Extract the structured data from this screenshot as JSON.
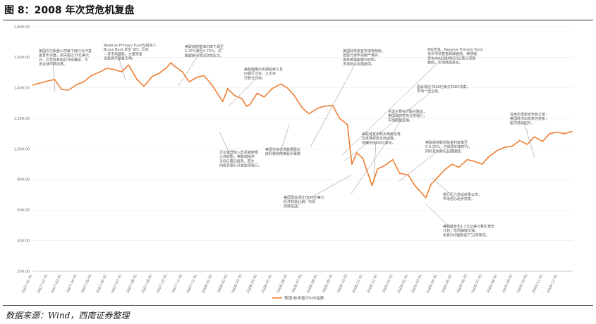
{
  "figure": {
    "title": "图 8：2008 年次贷危机复盘",
    "source": "数据来源：Wind，西南证券整理"
  },
  "colors": {
    "line": "#ed7d31",
    "connector": "#7f7f7f",
    "text": "#555555",
    "grid": "#e6e6e6"
  },
  "chart_data": {
    "type": "line",
    "title": "",
    "xlabel": "",
    "ylabel": "",
    "ylim": [
      200,
      1800
    ],
    "yticks": [
      "200.00",
      "400.00",
      "600.00",
      "800.00",
      "1,000.00",
      "1,200.00",
      "1,400.00",
      "1,600.00",
      "1,800.00"
    ],
    "ytick_values": [
      200,
      400,
      600,
      800,
      1000,
      1200,
      1400,
      1600,
      1800
    ],
    "xticks": [
      "2007-01-01",
      "2007-02-01",
      "2007-03-01",
      "2007-04-01",
      "2007-05-01",
      "2007-06-01",
      "2007-07-01",
      "2007-08-01",
      "2007-09-01",
      "2007-10-01",
      "2007-11-01",
      "2007-12-01",
      "2008-01-01",
      "2008-02-01",
      "2008-03-01",
      "2008-04-01",
      "2008-05-01",
      "2008-06-01",
      "2008-07-01",
      "2008-08-01",
      "2008-09-01",
      "2008-10-01",
      "2008-11-01",
      "2008-12-01",
      "2009-01-01",
      "2009-02-01",
      "2009-03-01",
      "2009-04-01",
      "2009-05-01",
      "2009-06-01",
      "2009-07-01",
      "2009-08-01",
      "2009-09-01",
      "2009-10-01",
      "2009-11-01",
      "2009-12-01"
    ],
    "legend": {
      "position": "bottom",
      "entries": [
        "美国:标准普尔500指数"
      ]
    },
    "series": [
      {
        "name": "美国:标准普尔500指数",
        "x": [
          "2007-01-01",
          "2007-01-15",
          "2007-02-01",
          "2007-02-15",
          "2007-03-01",
          "2007-03-15",
          "2007-04-01",
          "2007-04-15",
          "2007-05-01",
          "2007-05-15",
          "2007-06-01",
          "2007-06-15",
          "2007-07-01",
          "2007-07-15",
          "2007-08-01",
          "2007-08-15",
          "2007-09-01",
          "2007-09-15",
          "2007-10-01",
          "2007-10-09",
          "2007-10-15",
          "2007-11-01",
          "2007-11-15",
          "2007-12-01",
          "2007-12-15",
          "2008-01-01",
          "2008-01-22",
          "2008-02-01",
          "2008-02-15",
          "2008-03-01",
          "2008-03-10",
          "2008-03-17",
          "2008-04-01",
          "2008-04-15",
          "2008-05-01",
          "2008-05-19",
          "2008-06-01",
          "2008-06-15",
          "2008-07-01",
          "2008-07-15",
          "2008-08-01",
          "2008-08-15",
          "2008-09-01",
          "2008-09-15",
          "2008-10-01",
          "2008-10-10",
          "2008-10-20",
          "2008-11-01",
          "2008-11-20",
          "2008-12-01",
          "2008-12-15",
          "2009-01-01",
          "2009-01-15",
          "2009-02-01",
          "2009-02-15",
          "2009-03-01",
          "2009-03-09",
          "2009-03-20",
          "2009-04-01",
          "2009-04-15",
          "2009-05-01",
          "2009-05-15",
          "2009-06-01",
          "2009-06-15",
          "2009-07-01",
          "2009-07-15",
          "2009-08-01",
          "2009-08-15",
          "2009-09-01",
          "2009-09-15",
          "2009-10-01",
          "2009-10-15",
          "2009-11-01",
          "2009-11-15",
          "2009-12-01",
          "2009-12-15",
          "2009-12-31"
        ],
        "values": [
          1418,
          1430,
          1445,
          1455,
          1390,
          1385,
          1422,
          1440,
          1482,
          1500,
          1528,
          1520,
          1505,
          1550,
          1455,
          1410,
          1475,
          1495,
          1535,
          1565,
          1545,
          1505,
          1440,
          1470,
          1480,
          1415,
          1310,
          1395,
          1350,
          1330,
          1280,
          1290,
          1365,
          1340,
          1395,
          1425,
          1400,
          1350,
          1270,
          1230,
          1265,
          1280,
          1285,
          1200,
          1160,
          900,
          975,
          940,
          760,
          870,
          890,
          930,
          840,
          830,
          760,
          710,
          680,
          770,
          810,
          860,
          900,
          880,
          930,
          920,
          900,
          950,
          990,
          1010,
          1020,
          1055,
          1030,
          1080,
          1050,
          1100,
          1110,
          1100,
          1115
        ]
      }
    ],
    "annotations": [
      {
        "lines": [
          "美国贝尔斯登公司旗下两只对冲基",
          "金宣布清盘，损失超过15亿美元",
          "元，次贷危机由此开始蔓延，引",
          "发全球市场动荡。"
        ]
      },
      {
        "lines": [
          "Reserve Primary Fund与投资人",
          "Bruce Bent 发生 SEC. 同年",
          "一月市场暴跌，大量资金",
          "逃离货币基金市场。"
        ]
      },
      {
        "lines": [
          "美联储将基准利率下调至",
          "5.25%降至4.75%，试",
          "图缓解市场流动性压力。"
        ]
      },
      {
        "lines": [
          "美联储推出定期拍卖工具",
          "向银行注资，三大央",
          "行联合行动。"
        ]
      },
      {
        "lines": [
          "贝尔斯登陷入危机被摩根",
          "大通收购，美联储提供",
          "300亿美元担保，首次",
          "向投资银行开放贴现窗口。"
        ]
      },
      {
        "lines": [
          "美国住房市场数据恶化",
          "房利美房地美股价暴跌"
        ]
      },
      {
        "lines": [
          "美国财政部宣布接管两房，",
          "雷曼兄弟申请破产保护，",
          "美林被美国银行收购，",
          "市场信心全面崩溃。"
        ]
      },
      {
        "lines": [
          "AIG告急，Reserve Primary Fund",
          "货币市场基金跌破面值，美联储",
          "宣布向AIG提供850亿美元贷款",
          "救助，市场持续恶化。"
        ]
      },
      {
        "lines": [
          "国会通过7000亿美元TARP法案，",
          "市场一度企稳。"
        ]
      },
      {
        "lines": [
          "全球主要央行联合降息，",
          "美国政府宣布注资银行，",
          "市场短暂反弹。"
        ]
      },
      {
        "lines": [
          "美联储宣布购买两房债券",
          "及抵押贷款支持证券，",
          "规模达6000亿美元。"
        ]
      },
      {
        "lines": [
          "美联储将联邦基金利率降至",
          "0-0.25%，开启零利率时代，",
          "同时宣布购买长期国债。"
        ]
      },
      {
        "lines": [
          "美国国会通过7870亿美元",
          "经济刺激计划，市场",
          "持续低迷。"
        ]
      },
      {
        "lines": [
          "美联储宣布1.2万亿美元量化宽松",
          "计划，市场触底反弹，",
          "标普500指数创下12年新低。"
        ]
      },
      {
        "lines": [
          "银行压力测试结果公布，",
          "市场信心逐步恢复。"
        ]
      },
      {
        "lines": [
          "信用市场逐步恢复正常，",
          "美国经济出现复苏迹象，",
          "股市持续回升。"
        ]
      }
    ]
  }
}
